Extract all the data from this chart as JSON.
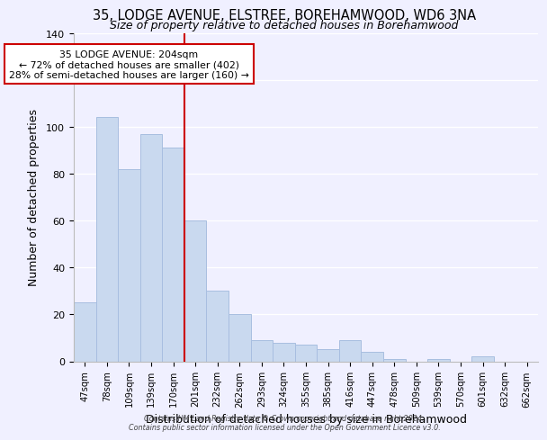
{
  "title": "35, LODGE AVENUE, ELSTREE, BOREHAMWOOD, WD6 3NA",
  "subtitle": "Size of property relative to detached houses in Borehamwood",
  "xlabel": "Distribution of detached houses by size in Borehamwood",
  "ylabel": "Number of detached properties",
  "bar_labels": [
    "47sqm",
    "78sqm",
    "109sqm",
    "139sqm",
    "170sqm",
    "201sqm",
    "232sqm",
    "262sqm",
    "293sqm",
    "324sqm",
    "355sqm",
    "385sqm",
    "416sqm",
    "447sqm",
    "478sqm",
    "509sqm",
    "539sqm",
    "570sqm",
    "601sqm",
    "632sqm",
    "662sqm"
  ],
  "bar_values": [
    25,
    104,
    82,
    97,
    91,
    60,
    30,
    20,
    9,
    8,
    7,
    5,
    9,
    4,
    1,
    0,
    1,
    0,
    2,
    0,
    0
  ],
  "bar_color": "#c9d9ef",
  "bar_edge_color": "#a8bee0",
  "vline_color": "#cc0000",
  "ylim": [
    0,
    140
  ],
  "yticks": [
    0,
    20,
    40,
    60,
    80,
    100,
    120,
    140
  ],
  "annotation_title": "35 LODGE AVENUE: 204sqm",
  "annotation_line1": "← 72% of detached houses are smaller (402)",
  "annotation_line2": "28% of semi-detached houses are larger (160) →",
  "annotation_box_color": "white",
  "annotation_box_edge": "#cc0000",
  "footer_line1": "Contains HM Land Registry data © Crown copyright and database right 2024.",
  "footer_line2": "Contains public sector information licensed under the Open Government Licence v3.0.",
  "background_color": "#f0f0ff",
  "grid_color": "white"
}
